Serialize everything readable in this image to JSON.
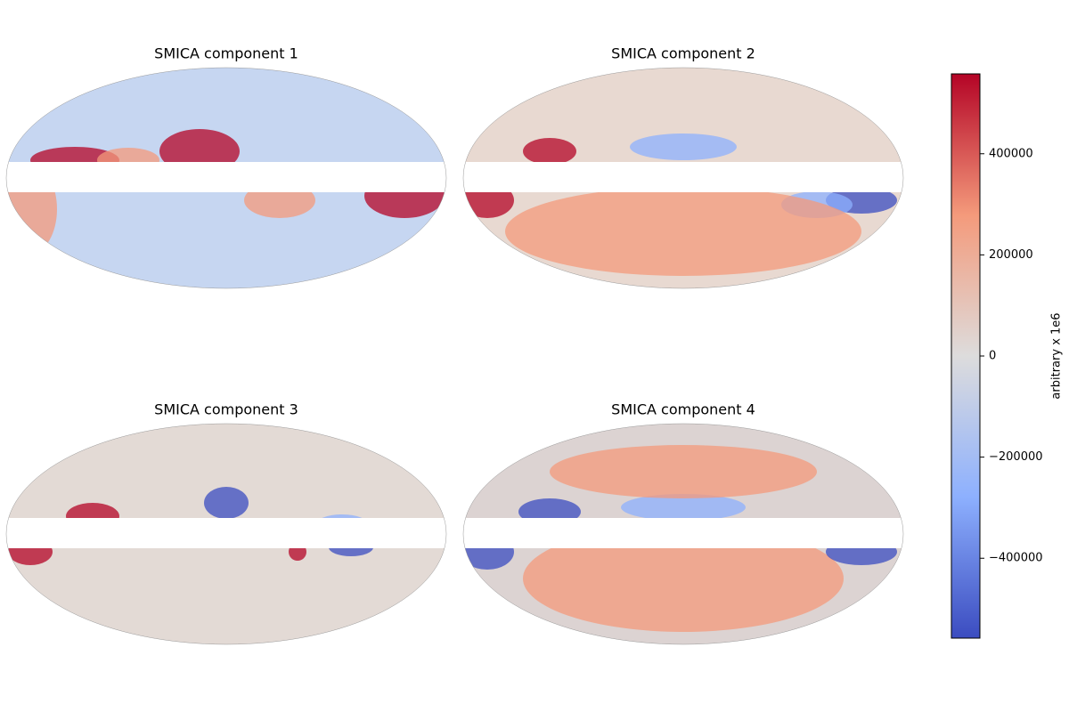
{
  "chart_data": {
    "type": "map",
    "panels": [
      {
        "title": "SMICA component 1",
        "base": "#c6d6f1"
      },
      {
        "title": "SMICA component 2",
        "base": "#e8d9d1"
      },
      {
        "title": "SMICA component 3",
        "base": "#e3dad5"
      },
      {
        "title": "SMICA component 4",
        "base": "#dcd3d2"
      }
    ],
    "colorbar": {
      "label": "arbitrary x 1e6",
      "cmap": [
        "#3b4cc0",
        "#8db0fe",
        "#dddcdc",
        "#f49a7b",
        "#b40426"
      ],
      "ylim": [
        -558000,
        558000
      ],
      "yticks": [
        {
          "value": -400000,
          "label": "−400000"
        },
        {
          "value": -200000,
          "label": "−200000"
        },
        0,
        200000,
        400000
      ]
    }
  }
}
